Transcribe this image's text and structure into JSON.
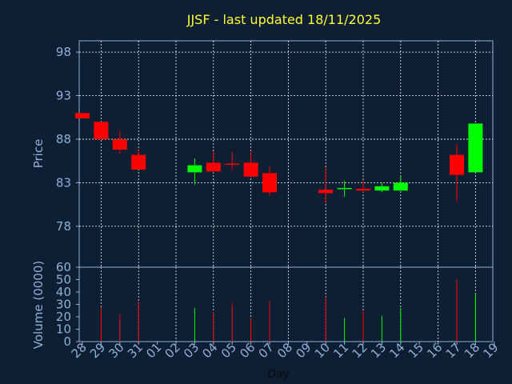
{
  "chart_data": {
    "type": "candlestick",
    "title": "JJSF - last updated 18/11/2025",
    "xlabel": "Day",
    "price_panel": {
      "ylabel": "Price",
      "yticks": [
        78,
        83,
        88,
        93,
        98
      ],
      "ylim": [
        73.3,
        99.3
      ]
    },
    "volume_panel": {
      "ylabel": "Volume (0000)",
      "yticks": [
        0,
        10,
        20,
        30,
        40,
        50,
        60
      ],
      "ylim": [
        0,
        60
      ]
    },
    "x_tick_labels": [
      "28",
      "29",
      "30",
      "31",
      "01",
      "02",
      "03",
      "04",
      "05",
      "06",
      "07",
      "08",
      "09",
      "10",
      "11",
      "12",
      "13",
      "14",
      "15",
      "16",
      "17",
      "18",
      "19"
    ],
    "up_color": "#00ff00",
    "down_color": "#ff0000",
    "grid": true,
    "candles": [
      {
        "day": "28",
        "open": 91.0,
        "high": 91.0,
        "low": 90.4,
        "close": 90.4,
        "volume": 0
      },
      {
        "day": "29",
        "open": 90.0,
        "high": 90.0,
        "low": 88.0,
        "close": 88.0,
        "volume": 28
      },
      {
        "day": "30",
        "open": 88.0,
        "high": 89.0,
        "low": 86.3,
        "close": 86.8,
        "volume": 22
      },
      {
        "day": "31",
        "open": 86.2,
        "high": 86.9,
        "low": 84.5,
        "close": 84.5,
        "volume": 32
      },
      {
        "day": "03",
        "open": 84.2,
        "high": 85.8,
        "low": 82.8,
        "close": 85.0,
        "volume": 27
      },
      {
        "day": "04",
        "open": 85.3,
        "high": 86.6,
        "low": 84.3,
        "close": 84.3,
        "volume": 24
      },
      {
        "day": "05",
        "open": 85.2,
        "high": 86.5,
        "low": 84.5,
        "close": 85.2,
        "volume": 31
      },
      {
        "day": "06",
        "open": 85.3,
        "high": 86.6,
        "low": 83.7,
        "close": 83.7,
        "volume": 19
      },
      {
        "day": "07",
        "open": 84.1,
        "high": 84.9,
        "low": 81.5,
        "close": 81.9,
        "volume": 33
      },
      {
        "day": "10",
        "open": 82.2,
        "high": 84.8,
        "low": 80.6,
        "close": 81.8,
        "volume": 36
      },
      {
        "day": "11",
        "open": 82.3,
        "high": 83.2,
        "low": 81.4,
        "close": 82.4,
        "volume": 19
      },
      {
        "day": "12",
        "open": 82.3,
        "high": 83.3,
        "low": 81.9,
        "close": 82.1,
        "volume": 25
      },
      {
        "day": "13",
        "open": 82.1,
        "high": 83.0,
        "low": 81.9,
        "close": 82.6,
        "volume": 21
      },
      {
        "day": "14",
        "open": 82.1,
        "high": 83.8,
        "low": 82.1,
        "close": 83.0,
        "volume": 27
      },
      {
        "day": "17",
        "open": 86.2,
        "high": 87.5,
        "low": 80.8,
        "close": 83.9,
        "volume": 50
      },
      {
        "day": "18",
        "open": 84.2,
        "high": 89.8,
        "low": 84.2,
        "close": 89.8,
        "volume": 39
      }
    ]
  }
}
